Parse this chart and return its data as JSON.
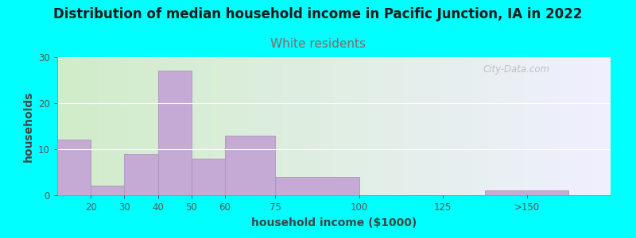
{
  "title": "Distribution of median household income in Pacific Junction, IA in 2022",
  "subtitle": "White residents",
  "xlabel": "household income ($1000)",
  "ylabel": "households",
  "background_color": "#00FFFF",
  "plot_bg_left": "#d0ecc8",
  "plot_bg_right": "#f0f0ff",
  "bar_color": "#c4aad4",
  "bar_edge_color": "#b090c0",
  "title_fontsize": 12,
  "subtitle_fontsize": 11,
  "subtitle_color": "#886666",
  "xlabel_fontsize": 10,
  "ylabel_fontsize": 10,
  "bar_lefts": [
    10,
    20,
    30,
    40,
    50,
    60,
    75,
    100,
    137.5
  ],
  "bar_widths": [
    10,
    10,
    10,
    10,
    10,
    15,
    25,
    25,
    25
  ],
  "bar_heights": [
    12,
    2,
    9,
    27,
    8,
    13,
    4,
    0,
    1
  ],
  "xlim": [
    10,
    175
  ],
  "ylim": [
    0,
    30
  ],
  "yticks": [
    0,
    10,
    20,
    30
  ],
  "xtick_positions": [
    20,
    30,
    40,
    50,
    60,
    75,
    100,
    125,
    150
  ],
  "xtick_labels": [
    "20",
    "30",
    "40",
    "50",
    "60",
    "75",
    "100",
    "125",
    ">150"
  ],
  "watermark": "City-Data.com"
}
